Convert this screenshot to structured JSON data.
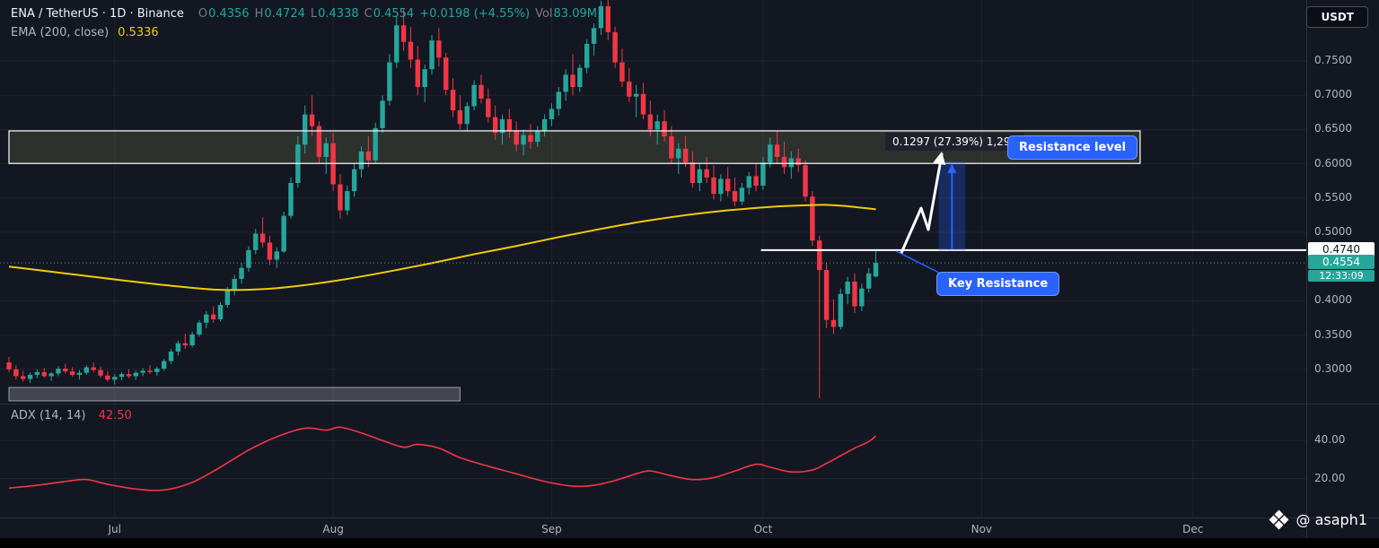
{
  "header": {
    "symbol_line": "ENA / TetherUS · 1D · Binance",
    "ohlc": {
      "o_label": "O",
      "o": "0.4356",
      "h_label": "H",
      "h": "0.4724",
      "l_label": "L",
      "l": "0.4338",
      "c_label": "C",
      "c": "0.4554",
      "change": "+0.0198 (+4.55%)",
      "vol_label": "Vol",
      "vol": "83.09M"
    },
    "ema": {
      "label": "EMA (200, close)",
      "value": "0.5336"
    },
    "currency_button": "USDT"
  },
  "adx_legend": {
    "label": "ADX (14, 14)",
    "value": "42.50"
  },
  "price_axis": {
    "key_level_label": "0.4740",
    "last_price_label": "0.4554",
    "countdown": "12:33:09"
  },
  "watermark": {
    "handle": "@ asaph1"
  },
  "colors": {
    "background": "#131722",
    "up": "#26a69a",
    "down": "#f23645",
    "ema": "#f0cb09",
    "adx": "#f23645",
    "accent_blue": "#2962ff",
    "zone_fill": "rgba(222,222,130,0.13)",
    "zone_border": "#ffffff",
    "key_line": "#ffffff",
    "last_price": "#26a69a",
    "box_fill": "rgba(240,243,250,0.22)",
    "box_border": "#9aa0ac",
    "grid": "rgba(240,243,250,0.06)",
    "separator": "#2a2e39"
  },
  "annotations": {
    "resistance_zone": {
      "label": "Resistance level",
      "price_top": 0.648,
      "price_bottom": 0.6005,
      "day_start": 0,
      "day_end": 160.5
    },
    "key_resistance": {
      "label": "Key Resistance",
      "price": 0.474,
      "day_start": 106.7
    },
    "measure": {
      "text": "0.1297 (27.39%) 1,297",
      "from_price": 0.4735,
      "to_price": 0.6032,
      "day_start": 131.9,
      "day_end": 135.7
    },
    "accumulation_box": {
      "price_top": 0.2736,
      "price_bottom": 0.254,
      "day_start": 0,
      "day_end": 64
    },
    "current_price_line": {
      "price": 0.4554
    }
  },
  "chart_data": {
    "type": "candlestick",
    "title": "ENA / TetherUS · 1D · Binance",
    "ylim": [
      0.25,
      0.845
    ],
    "adx_ylim": [
      0,
      59
    ],
    "months": [
      {
        "label": "Jul",
        "day": 15
      },
      {
        "label": "Aug",
        "day": 46
      },
      {
        "label": "Sep",
        "day": 77
      },
      {
        "label": "Oct",
        "day": 107
      },
      {
        "label": "Nov",
        "day": 138
      },
      {
        "label": "Dec",
        "day": 168
      }
    ],
    "price_ticks": [
      {
        "label": "0.7500",
        "value": 0.75
      },
      {
        "label": "0.7000",
        "value": 0.7
      },
      {
        "label": "0.6500",
        "value": 0.65
      },
      {
        "label": "0.6000",
        "value": 0.6
      },
      {
        "label": "0.5500",
        "value": 0.55
      },
      {
        "label": "0.5000",
        "value": 0.5
      },
      {
        "label": "0.4000",
        "value": 0.4
      },
      {
        "label": "0.3500",
        "value": 0.35
      },
      {
        "label": "0.3000",
        "value": 0.3
      }
    ],
    "adx_ticks": [
      {
        "label": "40.00",
        "value": 40
      },
      {
        "label": "20.00",
        "value": 20
      }
    ],
    "candles": [
      [
        0.31,
        0.318,
        0.296,
        0.3
      ],
      [
        0.3,
        0.306,
        0.285,
        0.29
      ],
      [
        0.29,
        0.298,
        0.282,
        0.286
      ],
      [
        0.286,
        0.295,
        0.28,
        0.292
      ],
      [
        0.292,
        0.3,
        0.287,
        0.296
      ],
      [
        0.296,
        0.302,
        0.288,
        0.29
      ],
      [
        0.29,
        0.296,
        0.283,
        0.294
      ],
      [
        0.294,
        0.305,
        0.29,
        0.301
      ],
      [
        0.301,
        0.308,
        0.294,
        0.297
      ],
      [
        0.297,
        0.303,
        0.289,
        0.292
      ],
      [
        0.292,
        0.299,
        0.285,
        0.295
      ],
      [
        0.295,
        0.306,
        0.292,
        0.303
      ],
      [
        0.303,
        0.31,
        0.296,
        0.299
      ],
      [
        0.299,
        0.304,
        0.288,
        0.291
      ],
      [
        0.291,
        0.297,
        0.282,
        0.285
      ],
      [
        0.285,
        0.293,
        0.278,
        0.289
      ],
      [
        0.289,
        0.296,
        0.284,
        0.293
      ],
      [
        0.293,
        0.3,
        0.287,
        0.29
      ],
      [
        0.29,
        0.298,
        0.285,
        0.295
      ],
      [
        0.295,
        0.302,
        0.29,
        0.298
      ],
      [
        0.298,
        0.306,
        0.293,
        0.296
      ],
      [
        0.296,
        0.304,
        0.291,
        0.301
      ],
      [
        0.301,
        0.315,
        0.298,
        0.312
      ],
      [
        0.312,
        0.33,
        0.308,
        0.326
      ],
      [
        0.326,
        0.342,
        0.32,
        0.338
      ],
      [
        0.338,
        0.352,
        0.33,
        0.335
      ],
      [
        0.335,
        0.355,
        0.332,
        0.351
      ],
      [
        0.351,
        0.372,
        0.348,
        0.368
      ],
      [
        0.368,
        0.385,
        0.36,
        0.38
      ],
      [
        0.38,
        0.392,
        0.368,
        0.373
      ],
      [
        0.373,
        0.398,
        0.37,
        0.394
      ],
      [
        0.394,
        0.42,
        0.39,
        0.415
      ],
      [
        0.415,
        0.438,
        0.408,
        0.432
      ],
      [
        0.432,
        0.455,
        0.425,
        0.448
      ],
      [
        0.448,
        0.48,
        0.442,
        0.474
      ],
      [
        0.474,
        0.505,
        0.468,
        0.498
      ],
      [
        0.498,
        0.522,
        0.478,
        0.485
      ],
      [
        0.485,
        0.495,
        0.452,
        0.46
      ],
      [
        0.46,
        0.478,
        0.448,
        0.472
      ],
      [
        0.472,
        0.53,
        0.47,
        0.524
      ],
      [
        0.524,
        0.58,
        0.52,
        0.572
      ],
      [
        0.572,
        0.64,
        0.565,
        0.628
      ],
      [
        0.628,
        0.685,
        0.615,
        0.672
      ],
      [
        0.672,
        0.7,
        0.64,
        0.655
      ],
      [
        0.655,
        0.662,
        0.6,
        0.61
      ],
      [
        0.61,
        0.638,
        0.585,
        0.63
      ],
      [
        0.63,
        0.645,
        0.56,
        0.57
      ],
      [
        0.57,
        0.585,
        0.52,
        0.532
      ],
      [
        0.532,
        0.568,
        0.525,
        0.56
      ],
      [
        0.56,
        0.6,
        0.552,
        0.592
      ],
      [
        0.592,
        0.625,
        0.58,
        0.618
      ],
      [
        0.618,
        0.64,
        0.595,
        0.605
      ],
      [
        0.605,
        0.66,
        0.6,
        0.652
      ],
      [
        0.652,
        0.7,
        0.645,
        0.692
      ],
      [
        0.692,
        0.76,
        0.685,
        0.748
      ],
      [
        0.748,
        0.815,
        0.74,
        0.802
      ],
      [
        0.802,
        0.825,
        0.765,
        0.778
      ],
      [
        0.778,
        0.8,
        0.74,
        0.752
      ],
      [
        0.752,
        0.772,
        0.7,
        0.712
      ],
      [
        0.712,
        0.745,
        0.69,
        0.738
      ],
      [
        0.738,
        0.788,
        0.73,
        0.78
      ],
      [
        0.78,
        0.798,
        0.742,
        0.755
      ],
      [
        0.755,
        0.762,
        0.7,
        0.708
      ],
      [
        0.708,
        0.725,
        0.668,
        0.678
      ],
      [
        0.678,
        0.7,
        0.65,
        0.658
      ],
      [
        0.658,
        0.69,
        0.648,
        0.684
      ],
      [
        0.684,
        0.722,
        0.678,
        0.715
      ],
      [
        0.715,
        0.73,
        0.688,
        0.695
      ],
      [
        0.695,
        0.71,
        0.66,
        0.668
      ],
      [
        0.668,
        0.685,
        0.635,
        0.645
      ],
      [
        0.645,
        0.672,
        0.628,
        0.665
      ],
      [
        0.665,
        0.68,
        0.638,
        0.648
      ],
      [
        0.648,
        0.662,
        0.618,
        0.628
      ],
      [
        0.628,
        0.65,
        0.612,
        0.642
      ],
      [
        0.642,
        0.658,
        0.622,
        0.632
      ],
      [
        0.632,
        0.655,
        0.625,
        0.648
      ],
      [
        0.648,
        0.672,
        0.64,
        0.665
      ],
      [
        0.665,
        0.688,
        0.655,
        0.68
      ],
      [
        0.68,
        0.712,
        0.67,
        0.705
      ],
      [
        0.705,
        0.738,
        0.692,
        0.73
      ],
      [
        0.73,
        0.76,
        0.7,
        0.712
      ],
      [
        0.712,
        0.745,
        0.705,
        0.74
      ],
      [
        0.74,
        0.782,
        0.732,
        0.775
      ],
      [
        0.775,
        0.805,
        0.758,
        0.798
      ],
      [
        0.798,
        0.838,
        0.788,
        0.83
      ],
      [
        0.83,
        0.845,
        0.78,
        0.792
      ],
      [
        0.792,
        0.8,
        0.74,
        0.748
      ],
      [
        0.748,
        0.768,
        0.712,
        0.72
      ],
      [
        0.72,
        0.74,
        0.69,
        0.698
      ],
      [
        0.698,
        0.715,
        0.668,
        0.702
      ],
      [
        0.702,
        0.718,
        0.665,
        0.672
      ],
      [
        0.672,
        0.692,
        0.64,
        0.65
      ],
      [
        0.65,
        0.672,
        0.628,
        0.662
      ],
      [
        0.662,
        0.678,
        0.632,
        0.64
      ],
      [
        0.64,
        0.655,
        0.6,
        0.608
      ],
      [
        0.608,
        0.63,
        0.585,
        0.622
      ],
      [
        0.622,
        0.64,
        0.595,
        0.602
      ],
      [
        0.602,
        0.618,
        0.565,
        0.572
      ],
      [
        0.572,
        0.6,
        0.56,
        0.592
      ],
      [
        0.592,
        0.61,
        0.572,
        0.58
      ],
      [
        0.58,
        0.598,
        0.548,
        0.556
      ],
      [
        0.556,
        0.585,
        0.545,
        0.578
      ],
      [
        0.578,
        0.595,
        0.552,
        0.56
      ],
      [
        0.56,
        0.58,
        0.538,
        0.545
      ],
      [
        0.545,
        0.572,
        0.54,
        0.565
      ],
      [
        0.565,
        0.588,
        0.555,
        0.582
      ],
      [
        0.582,
        0.6,
        0.56,
        0.568
      ],
      [
        0.568,
        0.61,
        0.562,
        0.602
      ],
      [
        0.602,
        0.638,
        0.595,
        0.628
      ],
      [
        0.628,
        0.648,
        0.6,
        0.61
      ],
      [
        0.61,
        0.632,
        0.585,
        0.595
      ],
      [
        0.595,
        0.618,
        0.578,
        0.608
      ],
      [
        0.608,
        0.622,
        0.588,
        0.598
      ],
      [
        0.598,
        0.605,
        0.545,
        0.552
      ],
      [
        0.552,
        0.56,
        0.48,
        0.488
      ],
      [
        0.488,
        0.495,
        0.258,
        0.445
      ],
      [
        0.445,
        0.455,
        0.36,
        0.372
      ],
      [
        0.372,
        0.402,
        0.352,
        0.362
      ],
      [
        0.362,
        0.418,
        0.358,
        0.41
      ],
      [
        0.41,
        0.435,
        0.395,
        0.428
      ],
      [
        0.428,
        0.44,
        0.382,
        0.392
      ],
      [
        0.392,
        0.425,
        0.385,
        0.418
      ],
      [
        0.418,
        0.448,
        0.412,
        0.44
      ],
      [
        0.4356,
        0.4724,
        0.4338,
        0.4554
      ]
    ],
    "ema_points": [
      [
        0,
        0.45
      ],
      [
        8,
        0.44
      ],
      [
        16,
        0.43
      ],
      [
        24,
        0.421
      ],
      [
        30,
        0.416
      ],
      [
        36,
        0.417
      ],
      [
        42,
        0.423
      ],
      [
        48,
        0.432
      ],
      [
        54,
        0.443
      ],
      [
        60,
        0.455
      ],
      [
        66,
        0.468
      ],
      [
        72,
        0.48
      ],
      [
        78,
        0.493
      ],
      [
        84,
        0.505
      ],
      [
        90,
        0.516
      ],
      [
        96,
        0.525
      ],
      [
        102,
        0.532
      ],
      [
        108,
        0.537
      ],
      [
        112,
        0.539
      ],
      [
        116,
        0.54
      ],
      [
        119,
        0.538
      ],
      [
        123,
        0.5336
      ]
    ],
    "adx_points": [
      [
        0,
        15
      ],
      [
        4,
        16.5
      ],
      [
        8,
        18.5
      ],
      [
        11,
        19.5
      ],
      [
        14,
        17
      ],
      [
        18,
        14.5
      ],
      [
        22,
        14
      ],
      [
        26,
        18
      ],
      [
        30,
        26
      ],
      [
        34,
        35
      ],
      [
        38,
        42
      ],
      [
        42,
        46.5
      ],
      [
        45,
        45.5
      ],
      [
        47,
        47
      ],
      [
        50,
        44
      ],
      [
        53,
        40
      ],
      [
        56,
        36.5
      ],
      [
        58,
        38
      ],
      [
        61,
        36
      ],
      [
        64,
        31
      ],
      [
        68,
        26.5
      ],
      [
        72,
        22.5
      ],
      [
        76,
        18.5
      ],
      [
        80,
        16
      ],
      [
        83,
        16.5
      ],
      [
        86,
        19
      ],
      [
        89,
        22.5
      ],
      [
        91,
        24
      ],
      [
        94,
        21.5
      ],
      [
        97,
        19.5
      ],
      [
        100,
        20.5
      ],
      [
        103,
        24
      ],
      [
        106,
        27.5
      ],
      [
        108,
        26
      ],
      [
        111,
        23.5
      ],
      [
        114,
        24.5
      ],
      [
        116,
        28
      ],
      [
        118,
        32
      ],
      [
        120,
        36
      ],
      [
        122,
        39.5
      ],
      [
        123,
        42.5
      ]
    ]
  }
}
